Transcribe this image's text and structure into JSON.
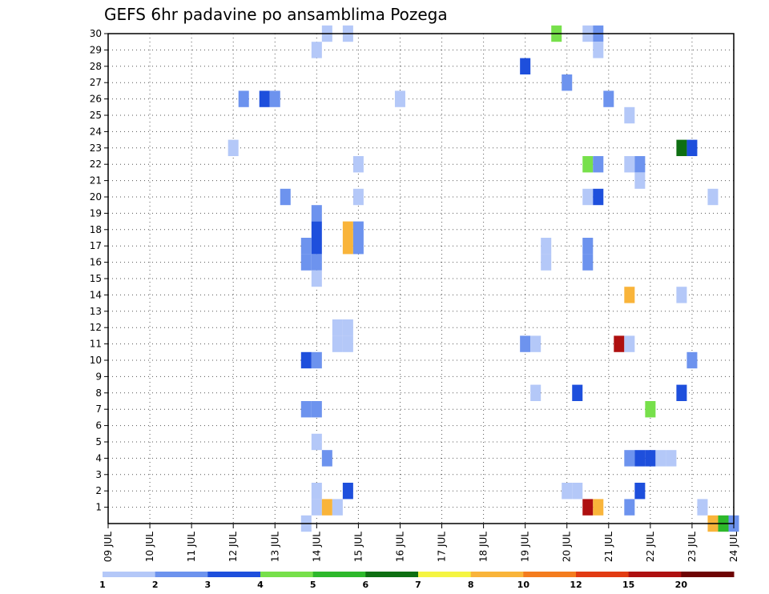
{
  "chart_data": {
    "type": "heatmap",
    "title": "GEFS 6hr padavine po ansamblima Pozega",
    "xlabel": "",
    "ylabel": "",
    "x_tick_labels": [
      "09 JUL",
      "10 JUL",
      "11 JUL",
      "12 JUL",
      "13 JUL",
      "14 JUL",
      "15 JUL",
      "16 JUL",
      "17 JUL",
      "18 JUL",
      "19 JUL",
      "20 JUL",
      "21 JUL",
      "22 JUL",
      "23 JUL",
      "24 JUL"
    ],
    "x_range_days": [
      0,
      15
    ],
    "y_tick_labels": [
      "1",
      "2",
      "3",
      "4",
      "5",
      "6",
      "7",
      "8",
      "9",
      "10",
      "11",
      "12",
      "13",
      "14",
      "15",
      "16",
      "17",
      "18",
      "19",
      "20",
      "21",
      "22",
      "23",
      "24",
      "25",
      "26",
      "27",
      "28",
      "29",
      "30"
    ],
    "y_range": [
      0,
      30
    ],
    "grid": true,
    "colorbar": {
      "labels": [
        "1",
        "2",
        "3",
        "4",
        "5",
        "6",
        "7",
        "8",
        "10",
        "12",
        "15",
        "20"
      ],
      "colors": [
        "#b4c8f8",
        "#6d93ee",
        "#1e4fdc",
        "#77e04b",
        "#2db82b",
        "#0e6f12",
        "#f5f542",
        "#f9b43a",
        "#f47c1e",
        "#e23b12",
        "#ae1010",
        "#6e0404"
      ]
    },
    "cells": [
      {
        "m": 30,
        "d": 5.25,
        "v": 1.5
      },
      {
        "m": 30,
        "d": 5.75,
        "v": 1.5
      },
      {
        "m": 30,
        "d": 10.75,
        "v": 4.5
      },
      {
        "m": 30,
        "d": 11.5,
        "v": 1.5
      },
      {
        "m": 30,
        "d": 11.75,
        "v": 2.5
      },
      {
        "m": 29,
        "d": 5.0,
        "v": 1.5
      },
      {
        "m": 29,
        "d": 11.75,
        "v": 1.5
      },
      {
        "m": 28,
        "d": 10.0,
        "v": 3.5
      },
      {
        "m": 27,
        "d": 11.0,
        "v": 2.5
      },
      {
        "m": 26,
        "d": 3.25,
        "v": 2.5
      },
      {
        "m": 26,
        "d": 3.75,
        "v": 3.5
      },
      {
        "m": 26,
        "d": 4.0,
        "v": 2.5
      },
      {
        "m": 26,
        "d": 7.0,
        "v": 1.5
      },
      {
        "m": 26,
        "d": 12.0,
        "v": 2.5
      },
      {
        "m": 25,
        "d": 12.5,
        "v": 1.5
      },
      {
        "m": 23,
        "d": 3.0,
        "v": 1.5
      },
      {
        "m": 23,
        "d": 13.75,
        "v": 6.5
      },
      {
        "m": 23,
        "d": 14.0,
        "v": 3.5
      },
      {
        "m": 22,
        "d": 6.0,
        "v": 1.5
      },
      {
        "m": 22,
        "d": 11.5,
        "v": 4.5
      },
      {
        "m": 22,
        "d": 11.75,
        "v": 2.5
      },
      {
        "m": 22,
        "d": 12.5,
        "v": 1.5
      },
      {
        "m": 22,
        "d": 12.75,
        "v": 2.5
      },
      {
        "m": 21,
        "d": 12.75,
        "v": 1.5
      },
      {
        "m": 20,
        "d": 4.25,
        "v": 2.5
      },
      {
        "m": 20,
        "d": 6.0,
        "v": 1.5
      },
      {
        "m": 20,
        "d": 11.5,
        "v": 1.5
      },
      {
        "m": 20,
        "d": 11.75,
        "v": 3.5
      },
      {
        "m": 20,
        "d": 14.5,
        "v": 1.5
      },
      {
        "m": 19,
        "d": 5.0,
        "v": 2.5
      },
      {
        "m": 18,
        "d": 5.0,
        "v": 3.5
      },
      {
        "m": 18,
        "d": 5.75,
        "v": 9.0
      },
      {
        "m": 18,
        "d": 6.0,
        "v": 2.5
      },
      {
        "m": 17,
        "d": 5.0,
        "v": 3.5
      },
      {
        "m": 17,
        "d": 5.75,
        "v": 9.0
      },
      {
        "m": 17,
        "d": 6.0,
        "v": 2.5
      },
      {
        "m": 17,
        "d": 4.75,
        "v": 2.5
      },
      {
        "m": 17,
        "d": 10.5,
        "v": 1.5
      },
      {
        "m": 17,
        "d": 11.5,
        "v": 2.5
      },
      {
        "m": 16,
        "d": 4.75,
        "v": 2.5
      },
      {
        "m": 16,
        "d": 5.0,
        "v": 2.5
      },
      {
        "m": 16,
        "d": 10.5,
        "v": 1.5
      },
      {
        "m": 16,
        "d": 11.5,
        "v": 2.5
      },
      {
        "m": 15,
        "d": 5.0,
        "v": 1.5
      },
      {
        "m": 14,
        "d": 12.5,
        "v": 9.0
      },
      {
        "m": 14,
        "d": 13.75,
        "v": 1.5
      },
      {
        "m": 12,
        "d": 5.5,
        "v": 1.5
      },
      {
        "m": 12,
        "d": 5.75,
        "v": 1.5
      },
      {
        "m": 11,
        "d": 5.5,
        "v": 1.5
      },
      {
        "m": 11,
        "d": 5.75,
        "v": 1.5
      },
      {
        "m": 11,
        "d": 10.0,
        "v": 2.5
      },
      {
        "m": 11,
        "d": 10.25,
        "v": 1.5
      },
      {
        "m": 11,
        "d": 12.25,
        "v": 17.0
      },
      {
        "m": 11,
        "d": 12.5,
        "v": 1.5
      },
      {
        "m": 10,
        "d": 4.75,
        "v": 3.5
      },
      {
        "m": 10,
        "d": 5.0,
        "v": 2.5
      },
      {
        "m": 10,
        "d": 14.0,
        "v": 2.5
      },
      {
        "m": 8,
        "d": 10.25,
        "v": 1.5
      },
      {
        "m": 8,
        "d": 11.25,
        "v": 3.5
      },
      {
        "m": 8,
        "d": 13.75,
        "v": 3.5
      },
      {
        "m": 7,
        "d": 4.75,
        "v": 2.5
      },
      {
        "m": 7,
        "d": 5.0,
        "v": 2.5
      },
      {
        "m": 7,
        "d": 13.0,
        "v": 4.5
      },
      {
        "m": 5,
        "d": 5.0,
        "v": 1.5
      },
      {
        "m": 4,
        "d": 5.25,
        "v": 2.5
      },
      {
        "m": 4,
        "d": 12.5,
        "v": 2.5
      },
      {
        "m": 4,
        "d": 12.75,
        "v": 3.5
      },
      {
        "m": 4,
        "d": 13.0,
        "v": 3.5
      },
      {
        "m": 4,
        "d": 13.25,
        "v": 1.5
      },
      {
        "m": 4,
        "d": 13.5,
        "v": 1.5
      },
      {
        "m": 2,
        "d": 5.0,
        "v": 1.5
      },
      {
        "m": 2,
        "d": 5.75,
        "v": 3.5
      },
      {
        "m": 2,
        "d": 11.0,
        "v": 1.5
      },
      {
        "m": 2,
        "d": 11.25,
        "v": 1.5
      },
      {
        "m": 2,
        "d": 12.75,
        "v": 3.5
      },
      {
        "m": 1,
        "d": 5.0,
        "v": 1.5
      },
      {
        "m": 1,
        "d": 5.25,
        "v": 9.0
      },
      {
        "m": 1,
        "d": 5.5,
        "v": 1.5
      },
      {
        "m": 1,
        "d": 11.5,
        "v": 17.0
      },
      {
        "m": 1,
        "d": 11.75,
        "v": 9.0
      },
      {
        "m": 1,
        "d": 12.5,
        "v": 2.5
      },
      {
        "m": 1,
        "d": 14.25,
        "v": 1.5
      },
      {
        "m": 0,
        "d": 4.75,
        "v": 1.5
      },
      {
        "m": 0,
        "d": 14.5,
        "v": 9.0
      },
      {
        "m": 0,
        "d": 14.75,
        "v": 5.5
      },
      {
        "m": 0,
        "d": 15.0,
        "v": 2.5
      }
    ]
  }
}
